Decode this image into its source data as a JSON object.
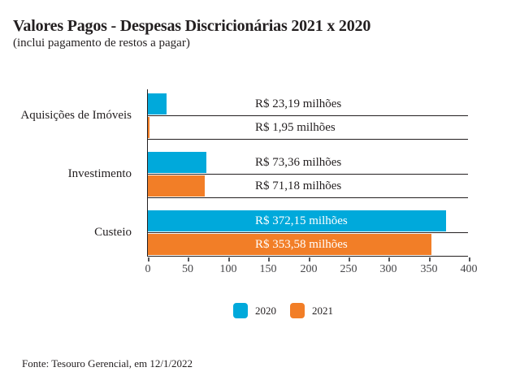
{
  "header": {
    "title": "Valores Pagos - Despesas Discricionárias 2021 x 2020",
    "subtitle": "(inclui pagamento de restos a pagar)"
  },
  "chart_data": {
    "type": "bar",
    "orientation": "horizontal",
    "title": "Valores Pagos - Despesas Discricionárias 2021 x 2020",
    "subtitle": "(inclui pagamento de restos a pagar)",
    "categories": [
      "Aquisições de Imóveis",
      "Investimento",
      "Custeio"
    ],
    "series": [
      {
        "name": "2020",
        "color_key": "blue",
        "values": [
          23.19,
          73.36,
          372.15
        ],
        "value_labels": [
          "R$ 23,19 milhões",
          "R$ 73,36 milhões",
          "R$ 372,15 milhões"
        ]
      },
      {
        "name": "2021",
        "color_key": "orange",
        "values": [
          1.95,
          71.18,
          353.58
        ],
        "value_labels": [
          "R$ 1,95 milhões",
          "R$ 71,18 milhões",
          "R$ 353,58 milhões"
        ]
      }
    ],
    "xlim": [
      0,
      400
    ],
    "x_ticks": [
      "0",
      "50",
      "100",
      "150",
      "200",
      "250",
      "300",
      "350",
      "400"
    ],
    "grid": false,
    "legend_position": "bottom"
  },
  "legend": [
    {
      "label": "2020",
      "color_key": "blue"
    },
    {
      "label": "2021",
      "color_key": "orange"
    }
  ],
  "colors": {
    "blue": "#00A9DB",
    "orange": "#F27E27",
    "axis": "#231F20",
    "text": "#231F20",
    "tick": "#55565A",
    "tick_label": "#454548",
    "value_label_on_bar": "#FFFFFF"
  },
  "footer": {
    "source": "Fonte: Tesouro Gerencial, em 12/1/2022"
  }
}
